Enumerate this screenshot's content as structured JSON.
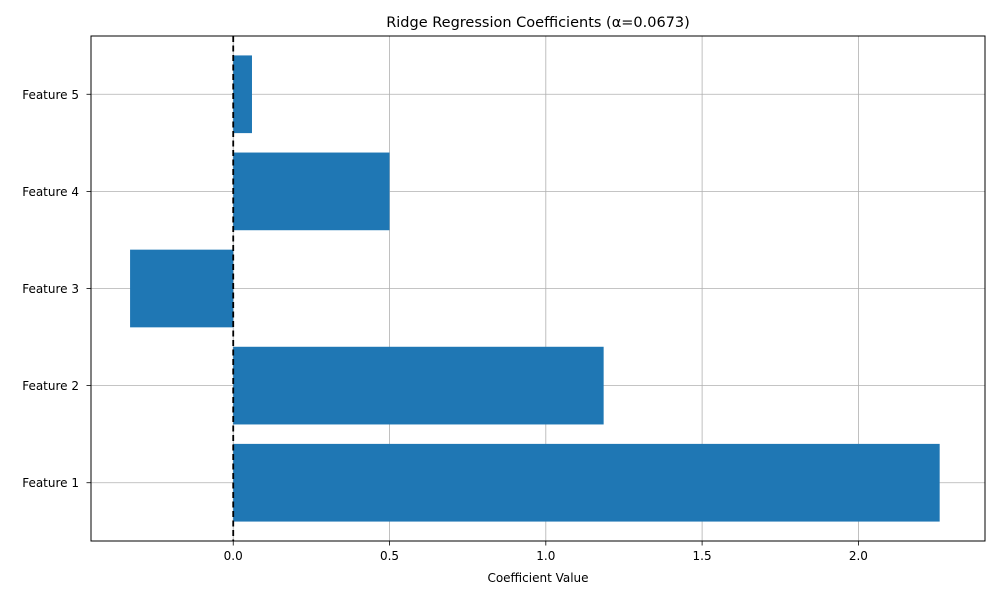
{
  "chart_data": {
    "type": "bar",
    "orientation": "horizontal",
    "title": "Ridge Regression Coefficients (α=0.0673)",
    "xlabel": "Coefficient Value",
    "ylabel": "",
    "categories": [
      "Feature 1",
      "Feature 2",
      "Feature 3",
      "Feature 4",
      "Feature 5"
    ],
    "values": [
      2.26,
      1.185,
      -0.33,
      0.5,
      0.06
    ],
    "xlim": [
      -0.455,
      2.405
    ],
    "xticks": [
      0.0,
      0.5,
      1.0,
      1.5,
      2.0
    ],
    "xtick_labels": [
      "0.0",
      "0.5",
      "1.0",
      "1.5",
      "2.0"
    ],
    "grid": true,
    "reference_line": {
      "x": 0,
      "style": "dashed"
    },
    "bar_color": "#1f77b4",
    "grid_color": "#b0b0b0",
    "reference_line_color": "#000000"
  }
}
